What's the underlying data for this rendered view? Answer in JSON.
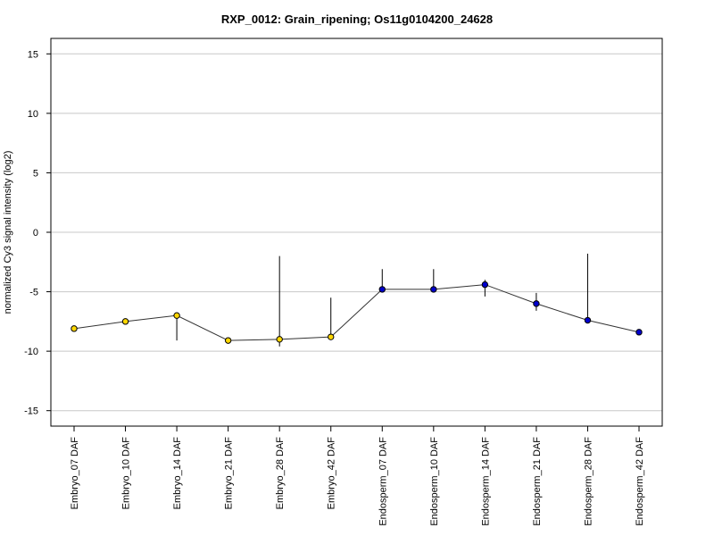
{
  "chart_data": {
    "type": "line",
    "title": "RXP_0012: Grain_ripening; Os11g0104200_24628",
    "xlabel": "",
    "ylabel": "normalized Cy3 signal intensity (log2)",
    "ylim": [
      -16.3,
      16.3
    ],
    "yticks": [
      15,
      10,
      5,
      0,
      -5,
      -10,
      -15
    ],
    "grid": true,
    "legend": "none",
    "categories": [
      "Embryo_07 DAF",
      "Embryo_10 DAF",
      "Embryo_14 DAF",
      "Embryo_21 DAF",
      "Embryo_28 DAF",
      "Embryo_42 DAF",
      "Endosperm_07 DAF",
      "Endosperm_10 DAF",
      "Endosperm_14 DAF",
      "Endosperm_21 DAF",
      "Endosperm_28 DAF",
      "Endosperm_42 DAF"
    ],
    "series": [
      {
        "values": [
          -8.1,
          -7.5,
          -7.0,
          -9.1,
          -9.0,
          -8.8,
          -4.8,
          -4.8,
          -4.4,
          -6.0,
          -7.4,
          -8.4
        ],
        "error_high": [
          -8.1,
          -7.3,
          -7.0,
          -9.1,
          -2.0,
          -5.5,
          -3.1,
          -3.1,
          -4.0,
          -5.1,
          -1.8,
          -8.4
        ],
        "error_low": [
          -8.1,
          -7.6,
          -9.1,
          -9.1,
          -9.6,
          -8.8,
          -4.8,
          -4.8,
          -5.4,
          -6.6,
          -7.4,
          -8.4
        ],
        "point_colors": [
          "#ffd700",
          "#ffd700",
          "#ffd700",
          "#ffd700",
          "#ffd700",
          "#ffd700",
          "#0000cd",
          "#0000cd",
          "#0000cd",
          "#0000cd",
          "#0000cd",
          "#0000cd"
        ]
      }
    ]
  }
}
